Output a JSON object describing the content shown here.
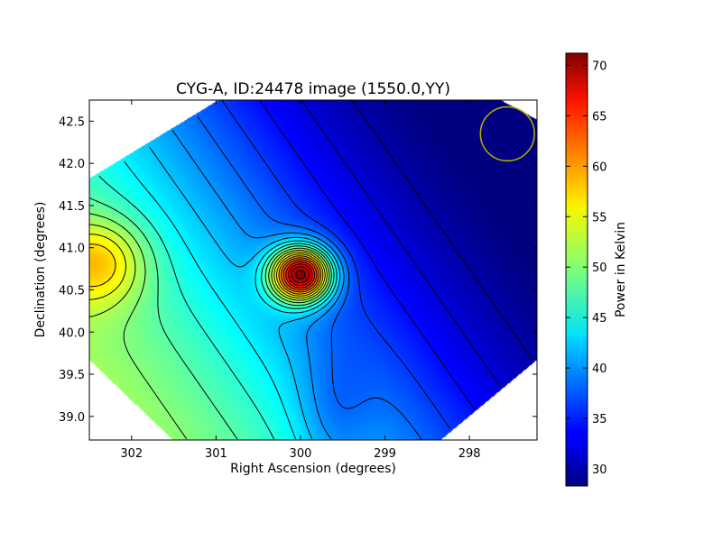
{
  "chart_data": {
    "type": "heatmap",
    "title": "CYG-A, ID:24478 image (1550.0,YY)",
    "xlabel": "Right Ascension (degrees)",
    "ylabel": "Declination (degrees)",
    "xlim": [
      302.5,
      297.2
    ],
    "ylim": [
      38.72,
      42.75
    ],
    "x_ticks": [
      302,
      301,
      300,
      299,
      298
    ],
    "x_tick_labels": [
      "302",
      "301",
      "300",
      "299",
      "298"
    ],
    "y_ticks": [
      39.0,
      39.5,
      40.0,
      40.5,
      41.0,
      41.5,
      42.0,
      42.5
    ],
    "y_tick_labels": [
      "39.0",
      "39.5",
      "40.0",
      "40.5",
      "41.0",
      "41.5",
      "42.0",
      "42.5"
    ],
    "colorbar": {
      "label": "Power in Kelvin",
      "range": [
        28.3,
        71.2
      ],
      "ticks": [
        30,
        35,
        40,
        45,
        50,
        55,
        60,
        65,
        70
      ],
      "tick_labels": [
        "30",
        "35",
        "40",
        "45",
        "50",
        "55",
        "60",
        "65",
        "70"
      ],
      "colormap": "jet"
    },
    "field_footprint_vertices": [
      {
        "ra": 302.5,
        "dec": 41.82
      },
      {
        "ra": 300.97,
        "dec": 42.75
      },
      {
        "ra": 297.63,
        "dec": 42.75
      },
      {
        "ra": 297.2,
        "dec": 42.52
      },
      {
        "ra": 297.2,
        "dec": 39.67
      },
      {
        "ra": 298.34,
        "dec": 38.72
      },
      {
        "ra": 301.51,
        "dec": 38.72
      },
      {
        "ra": 302.5,
        "dec": 39.67
      }
    ],
    "sources": [
      {
        "name": "peak",
        "ra": 300.0,
        "dec": 40.68,
        "peak_kelvin": 71,
        "extent_deg": 0.35
      },
      {
        "name": "east-edge-maximum",
        "ra": 302.45,
        "dec": 40.8,
        "peak_kelvin": 58,
        "extent_deg": 0.55
      }
    ],
    "background_gradient": {
      "high_kelvin": 52,
      "low_kelvin": 28,
      "direction": "decreasing toward low RA and high Dec"
    },
    "contour_levels_kelvin": [
      30,
      32,
      34,
      36,
      38,
      40,
      42,
      44,
      46,
      48,
      50,
      52,
      54,
      56,
      58,
      60,
      62,
      64,
      66,
      68,
      70
    ],
    "beam": {
      "ra": 297.55,
      "dec": 42.35,
      "radius_deg": 0.32,
      "color": "#b5b000"
    }
  }
}
